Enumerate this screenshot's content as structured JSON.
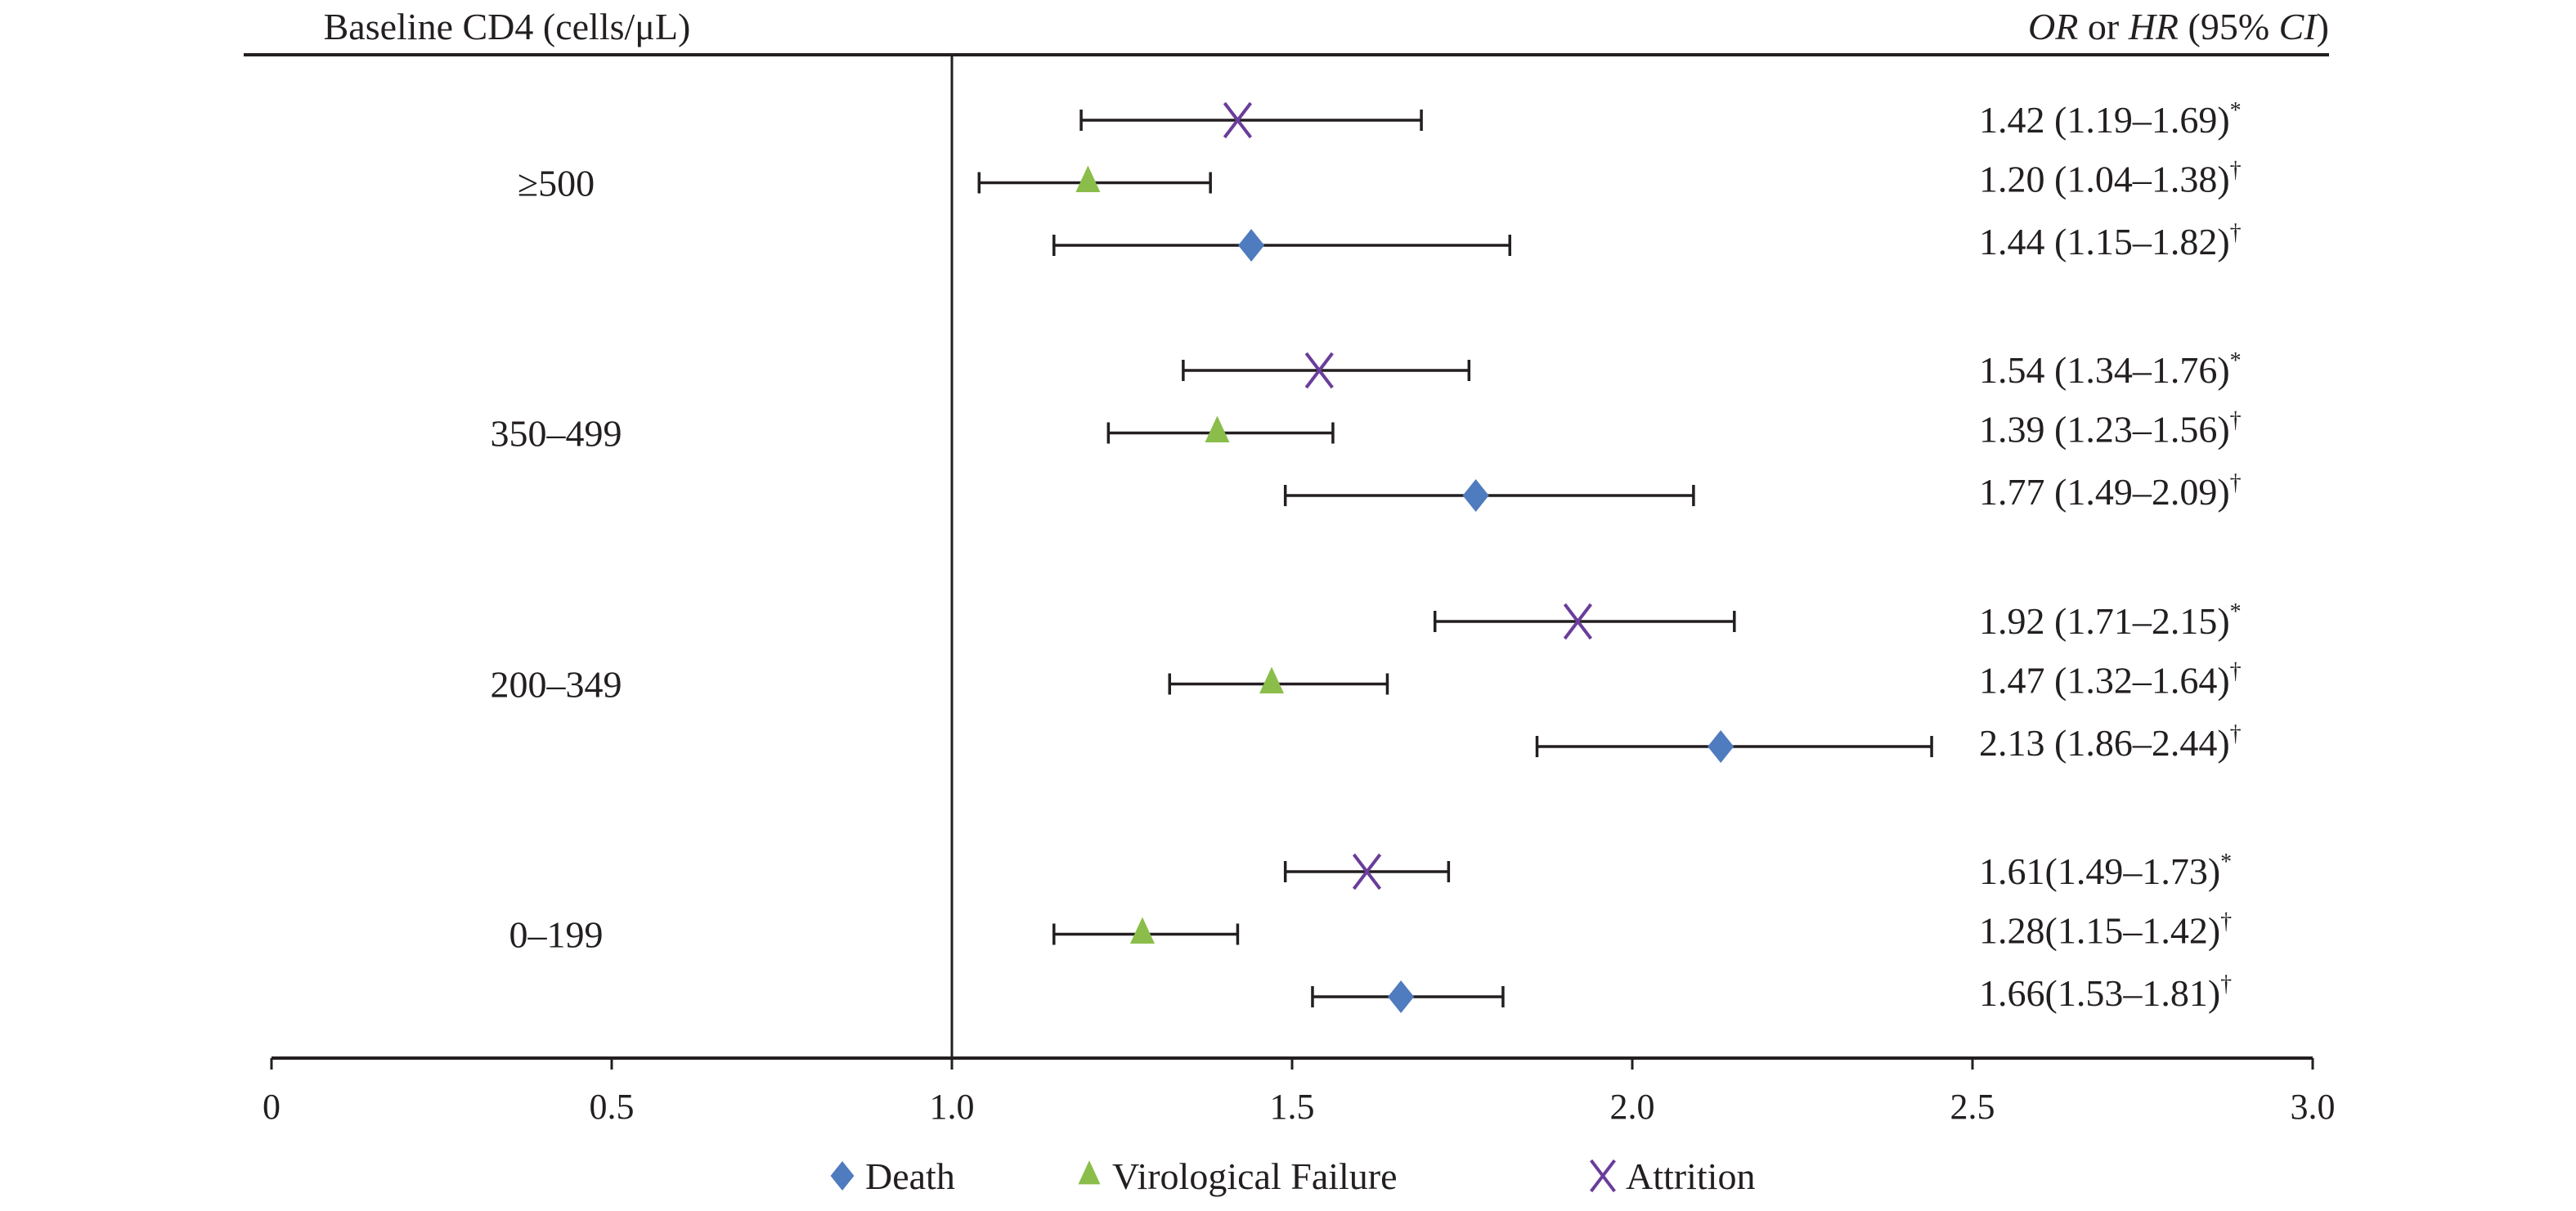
{
  "chart_data": {
    "type": "forest",
    "title": "",
    "header_left": "Baseline CD4 (cells/μL)",
    "header_right": {
      "parts": [
        {
          "text": "OR",
          "italic": true
        },
        {
          "text": " or ",
          "italic": false
        },
        {
          "text": "HR",
          "italic": true
        },
        {
          "text": " (95% ",
          "italic": false
        },
        {
          "text": "CI",
          "italic": true
        },
        {
          "text": ")",
          "italic": false
        }
      ]
    },
    "xlabel": "",
    "xlim": [
      0,
      3.0
    ],
    "x_ticks": [
      0,
      0.5,
      1.0,
      1.5,
      2.0,
      2.5,
      3.0
    ],
    "x_tick_labels": [
      "0",
      "0.5",
      "1.0",
      "1.5",
      "2.0",
      "2.5",
      "3.0"
    ],
    "reference_line": 1.0,
    "grid": false,
    "legend_position": "bottom",
    "series": [
      {
        "name": "Death",
        "marker": "diamond",
        "color": "#4f7bbf"
      },
      {
        "name": "Virological Failure",
        "marker": "triangle",
        "color": "#8bbd4a"
      },
      {
        "name": "Attrition",
        "marker": "x",
        "color": "#6a3d9a"
      }
    ],
    "groups": [
      {
        "label": "≥500",
        "rows": [
          {
            "series": "Attrition",
            "estimate": 1.42,
            "lower": 1.19,
            "upper": 1.69,
            "text": "1.42 (1.19–1.69)",
            "mark": "*"
          },
          {
            "series": "Virological Failure",
            "estimate": 1.2,
            "lower": 1.04,
            "upper": 1.38,
            "text": "1.20 (1.04–1.38)",
            "mark": "†"
          },
          {
            "series": "Death",
            "estimate": 1.44,
            "lower": 1.15,
            "upper": 1.82,
            "text": "1.44 (1.15–1.82)",
            "mark": "†"
          }
        ]
      },
      {
        "label": "350–499",
        "rows": [
          {
            "series": "Attrition",
            "estimate": 1.54,
            "lower": 1.34,
            "upper": 1.76,
            "text": "1.54 (1.34–1.76)",
            "mark": "*"
          },
          {
            "series": "Virological Failure",
            "estimate": 1.39,
            "lower": 1.23,
            "upper": 1.56,
            "text": "1.39 (1.23–1.56)",
            "mark": "†"
          },
          {
            "series": "Death",
            "estimate": 1.77,
            "lower": 1.49,
            "upper": 2.09,
            "text": "1.77 (1.49–2.09)",
            "mark": "†"
          }
        ]
      },
      {
        "label": "200–349",
        "rows": [
          {
            "series": "Attrition",
            "estimate": 1.92,
            "lower": 1.71,
            "upper": 2.15,
            "text": "1.92 (1.71–2.15)",
            "mark": "*"
          },
          {
            "series": "Virological Failure",
            "estimate": 1.47,
            "lower": 1.32,
            "upper": 1.64,
            "text": "1.47 (1.32–1.64)",
            "mark": "†"
          },
          {
            "series": "Death",
            "estimate": 2.13,
            "lower": 1.86,
            "upper": 2.44,
            "text": "2.13 (1.86–2.44)",
            "mark": "†"
          }
        ]
      },
      {
        "label": "0–199",
        "rows": [
          {
            "series": "Attrition",
            "estimate": 1.61,
            "lower": 1.49,
            "upper": 1.73,
            "text": "1.61(1.49–1.73)",
            "mark": "*"
          },
          {
            "series": "Virological Failure",
            "estimate": 1.28,
            "lower": 1.15,
            "upper": 1.42,
            "text": "1.28(1.15–1.42)",
            "mark": "†"
          },
          {
            "series": "Death",
            "estimate": 1.66,
            "lower": 1.53,
            "upper": 1.81,
            "text": "1.66(1.53–1.81)",
            "mark": "†"
          }
        ]
      }
    ]
  }
}
